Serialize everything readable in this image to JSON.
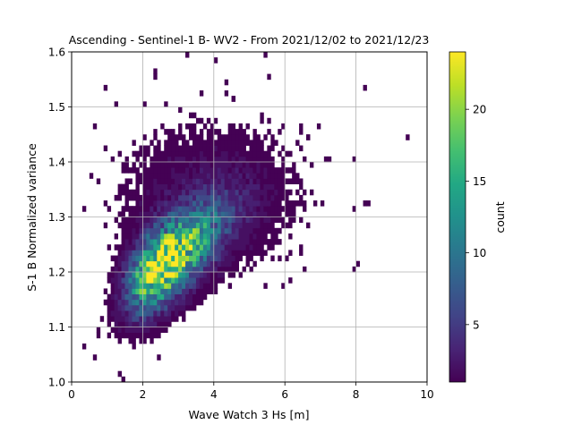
{
  "chart_data": {
    "type": "heatmap",
    "title": "Ascending - Sentinel-1 B- WV2 - From 2021/12/02 to 2021/12/23",
    "xlabel": "Wave Watch 3 Hs [m]",
    "ylabel": "S-1 B Normalized variance",
    "xlim": [
      0,
      10
    ],
    "ylim": [
      1.0,
      1.6
    ],
    "xticks": [
      "0",
      "2",
      "4",
      "6",
      "8",
      "10"
    ],
    "yticks": [
      "1.0",
      "1.1",
      "1.2",
      "1.3",
      "1.4",
      "1.5",
      "1.6"
    ],
    "xtick_values": [
      0,
      2,
      4,
      6,
      8,
      10
    ],
    "ytick_values": [
      1.0,
      1.1,
      1.2,
      1.3,
      1.4,
      1.5,
      1.6
    ],
    "grid": true,
    "colormap": "viridis",
    "bin_width_x": 0.1,
    "bin_width_y": 0.01,
    "colorbar": {
      "label": "count",
      "range": [
        1,
        24
      ],
      "ticks": [
        "5",
        "10",
        "15",
        "20"
      ],
      "tick_values": [
        5,
        10,
        15,
        20
      ]
    },
    "core_distribution": {
      "hs_mean": 2.4,
      "hs_sd_near": 0.55,
      "hs_sd_far": 1.05,
      "nv_slope": 0.045,
      "nv_intercept": 1.095,
      "nv_sd": 0.045,
      "peak_count": 24,
      "peak_location": [
        2.2,
        1.2
      ]
    },
    "outlier_bins": [
      [
        9.4,
        1.44,
        1
      ],
      [
        8.2,
        1.53,
        1
      ],
      [
        8.2,
        1.32,
        1
      ],
      [
        8.3,
        1.32,
        1
      ],
      [
        7.9,
        1.31,
        1
      ],
      [
        8.0,
        1.21,
        1
      ],
      [
        7.9,
        1.2,
        1
      ],
      [
        7.2,
        1.4,
        1
      ],
      [
        6.8,
        1.32,
        1
      ],
      [
        6.5,
        1.4,
        1
      ],
      [
        6.6,
        1.28,
        1
      ],
      [
        6.4,
        1.24,
        1
      ],
      [
        6.1,
        1.18,
        1
      ],
      [
        5.4,
        1.59,
        1
      ],
      [
        5.5,
        1.55,
        1
      ],
      [
        0.3,
        1.06,
        1
      ],
      [
        0.6,
        1.04,
        1
      ],
      [
        1.3,
        1.01,
        1
      ],
      [
        1.4,
        1.0,
        1
      ],
      [
        2.4,
        1.04,
        1
      ],
      [
        0.8,
        1.11,
        1
      ],
      [
        1.0,
        1.24,
        1
      ],
      [
        0.9,
        1.53,
        1
      ],
      [
        2.3,
        1.56,
        1
      ],
      [
        3.2,
        1.59,
        1
      ],
      [
        3.6,
        1.52,
        1
      ],
      [
        4.0,
        1.58,
        1
      ],
      [
        2.6,
        1.5,
        1
      ],
      [
        4.5,
        1.51,
        1
      ],
      [
        5.3,
        1.47,
        1
      ],
      [
        6.9,
        1.46,
        1
      ],
      [
        6.6,
        1.44,
        1
      ],
      [
        1.2,
        1.5,
        1
      ],
      [
        1.4,
        1.34,
        1
      ],
      [
        5.9,
        1.17,
        1
      ]
    ]
  }
}
